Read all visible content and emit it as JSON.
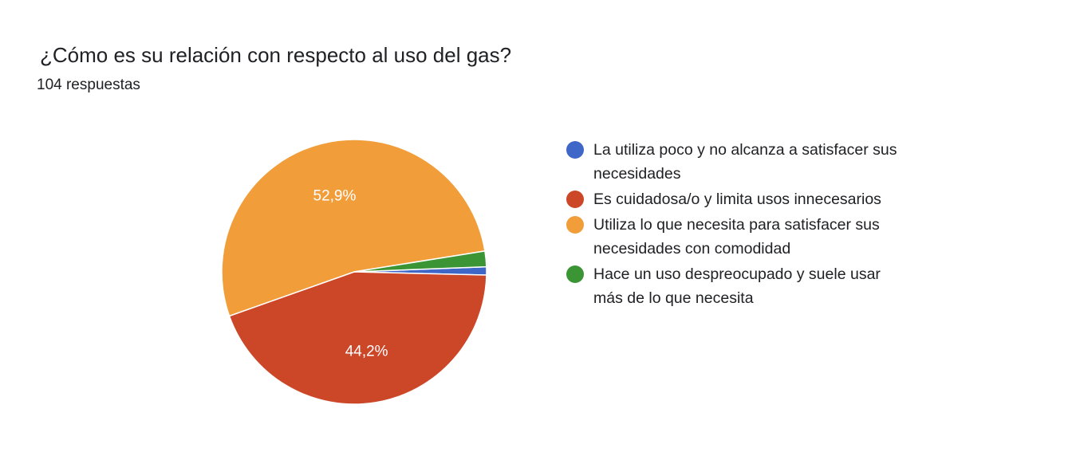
{
  "header": {
    "title": "¿Cómo es su relación con respecto al uso del gas?",
    "subtitle": "104 respuestas"
  },
  "chart_data": {
    "type": "pie",
    "title": "¿Cómo es su relación con respecto al uso del gas?",
    "total_label": "104 respuestas",
    "categories": [
      "La utiliza poco y no alcanza a satisfacer sus necesidades",
      "Es cuidadosa/o y limita usos innecesarios",
      "Utiliza lo que necesita para satisfacer sus necesidades con comodidad",
      "Hace un uso despreocupado y suele usar más de lo que necesita"
    ],
    "values": [
      1.0,
      44.2,
      52.9,
      1.9
    ],
    "value_labels": [
      "",
      "44,2%",
      "52,9%",
      ""
    ],
    "colors": [
      "#3f67c8",
      "#cc4628",
      "#f19e3a",
      "#3b9535"
    ],
    "legend_position": "right"
  }
}
